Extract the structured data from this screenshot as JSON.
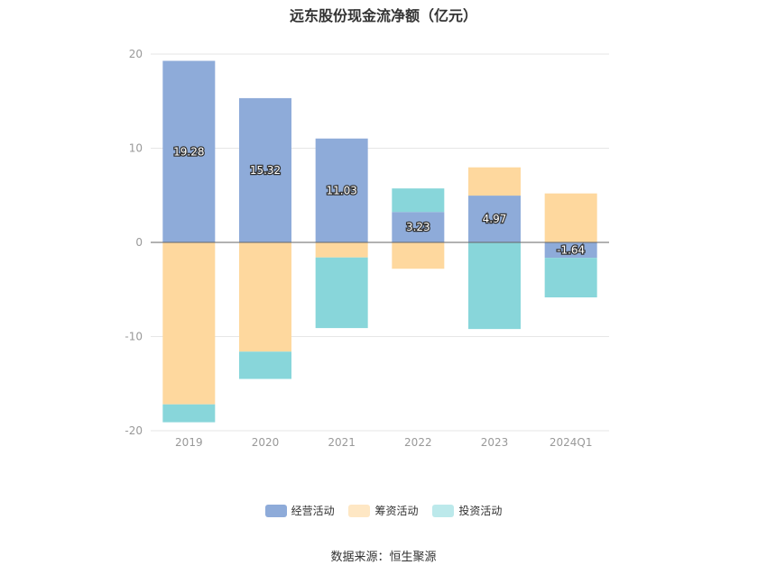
{
  "chart_data": {
    "type": "bar",
    "stacked": true,
    "title": "远东股份现金流净额（亿元）",
    "categories": [
      "2019",
      "2020",
      "2021",
      "2022",
      "2023",
      "2024Q1"
    ],
    "ylim": [
      -20,
      20
    ],
    "yticks": [
      "20",
      "10",
      "0",
      "-10",
      "-20"
    ],
    "grid": true,
    "legend_position": "bottom",
    "series": [
      {
        "name": "经营活动",
        "color": "#8eabd9",
        "values": [
          19.28,
          15.32,
          11.03,
          3.23,
          4.97,
          -1.64
        ],
        "labels": [
          "19.28",
          "15.32",
          "11.03",
          "3.23",
          "4.97",
          "-1.64"
        ]
      },
      {
        "name": "筹资活动",
        "color": "#fed89e",
        "values": [
          -17.2,
          -11.6,
          -1.6,
          -2.8,
          3.0,
          5.2
        ]
      },
      {
        "name": "投资活动",
        "color": "#88d6da",
        "values": [
          -1.9,
          -2.9,
          -7.5,
          2.5,
          -9.2,
          -4.2
        ]
      }
    ]
  },
  "legend": {
    "items": [
      "经营活动",
      "筹资活动",
      "投资活动"
    ]
  },
  "source": "数据来源：恒生聚源"
}
